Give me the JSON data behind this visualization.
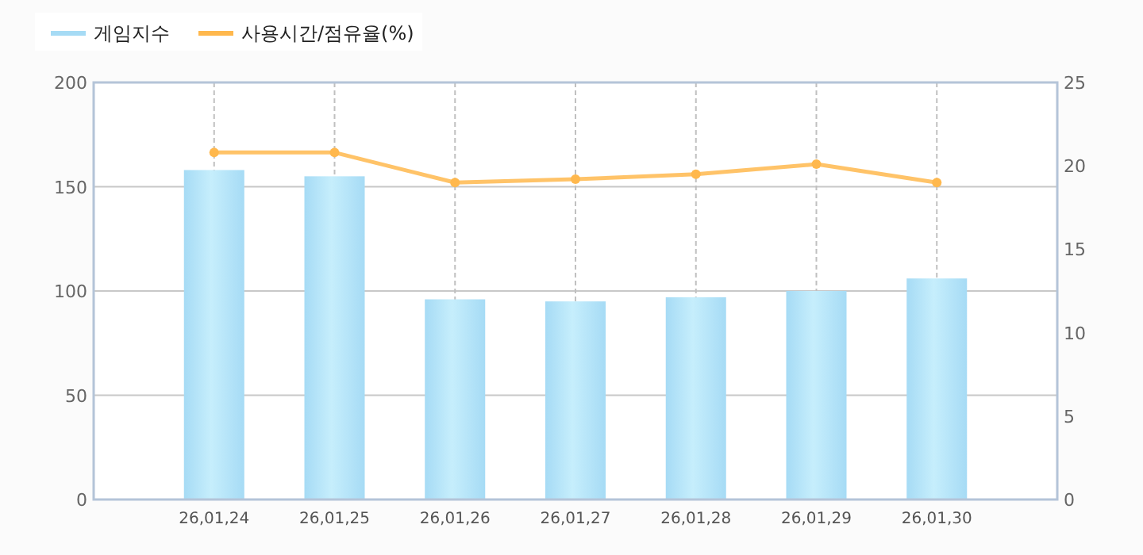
{
  "chart_data": {
    "type": "bar",
    "categories": [
      "26,01,24",
      "26,01,25",
      "26,01,26",
      "26,01,27",
      "26,01,28",
      "26,01,29",
      "26,01,30"
    ],
    "series": [
      {
        "name": "게임지수",
        "color": "#a6dbf5",
        "values": [
          158,
          155,
          96,
          95,
          97,
          100,
          106
        ]
      },
      {
        "name": "사용시간/점유율(%)",
        "type": "line",
        "axis": "y2",
        "color": "#ffb84d",
        "values": [
          20.8,
          20.8,
          19.0,
          19.2,
          19.5,
          20.1,
          19.0
        ]
      }
    ],
    "ylim": [
      0,
      200
    ],
    "yticks": [
      0,
      50,
      100,
      150,
      200
    ],
    "y2lim": [
      0,
      25
    ],
    "y2ticks": [
      0,
      5,
      10,
      15,
      20,
      25
    ],
    "grid": true,
    "legend": "top left",
    "marker": "circle"
  }
}
